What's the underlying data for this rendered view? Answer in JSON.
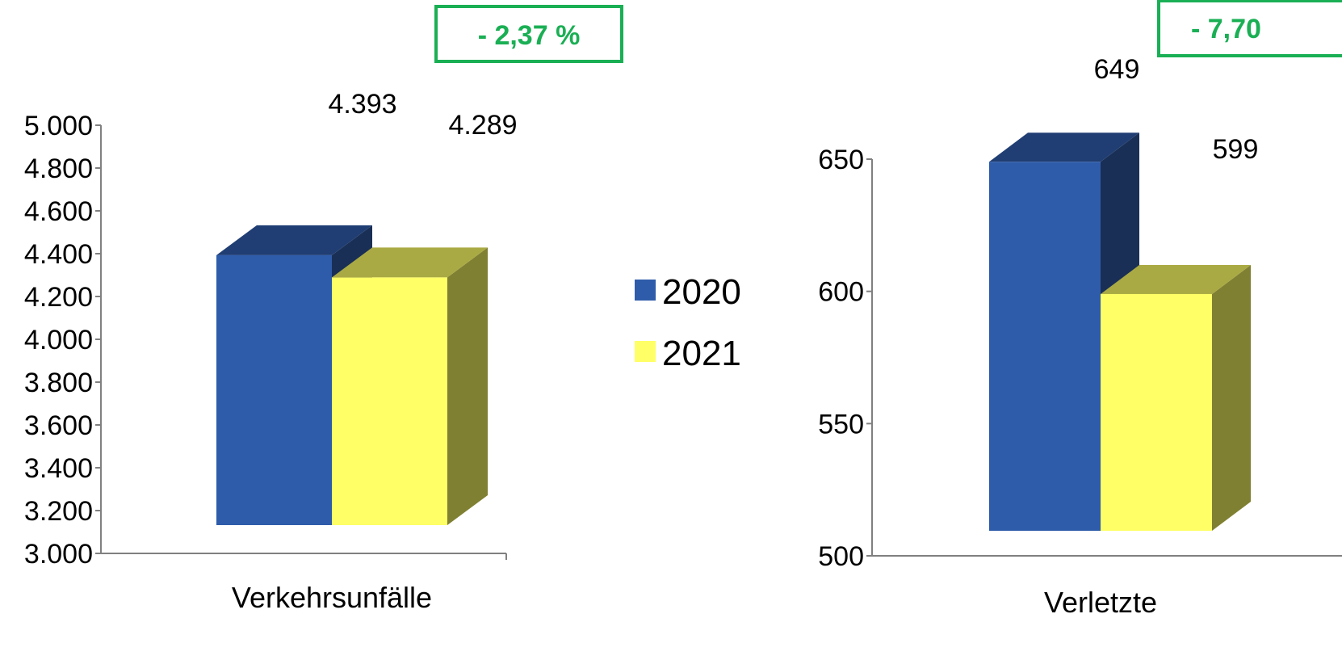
{
  "colors": {
    "series_2020": "#2e5caa",
    "series_2020_top": "#203e73",
    "series_2020_side": "#1a2f55",
    "series_2021": "#ffff66",
    "series_2021_top": "#aaaa44",
    "series_2021_side": "#808033",
    "change_box": "#1aaf54",
    "axis": "#808080"
  },
  "legend": {
    "items": [
      {
        "label": "2020"
      },
      {
        "label": "2021"
      }
    ]
  },
  "chart_data": [
    {
      "type": "bar",
      "categories": [
        "Verkehrsunfälle"
      ],
      "series": [
        {
          "name": "2020",
          "values": [
            4393
          ]
        },
        {
          "name": "2021",
          "values": [
            4289
          ]
        }
      ],
      "data_labels": [
        "4.393",
        "4.289"
      ],
      "ylim": [
        3000,
        5000
      ],
      "yticks": [
        3000,
        3200,
        3400,
        3600,
        3800,
        4000,
        4200,
        4400,
        4600,
        4800,
        5000
      ],
      "ytick_labels": [
        "3.000",
        "3.200",
        "3.400",
        "3.600",
        "3.800",
        "4.000",
        "4.200",
        "4.400",
        "4.600",
        "4.800",
        "5.000"
      ],
      "change": "- 2,37 %",
      "grid": false
    },
    {
      "type": "bar",
      "categories": [
        "Verletzte"
      ],
      "series": [
        {
          "name": "2020",
          "values": [
            649
          ]
        },
        {
          "name": "2021",
          "values": [
            599
          ]
        }
      ],
      "data_labels": [
        "649",
        "599"
      ],
      "ylim": [
        500,
        650
      ],
      "yticks": [
        500,
        550,
        600,
        650
      ],
      "ytick_labels": [
        "500",
        "550",
        "600",
        "650"
      ],
      "change": "- 7,70",
      "grid": false
    }
  ]
}
